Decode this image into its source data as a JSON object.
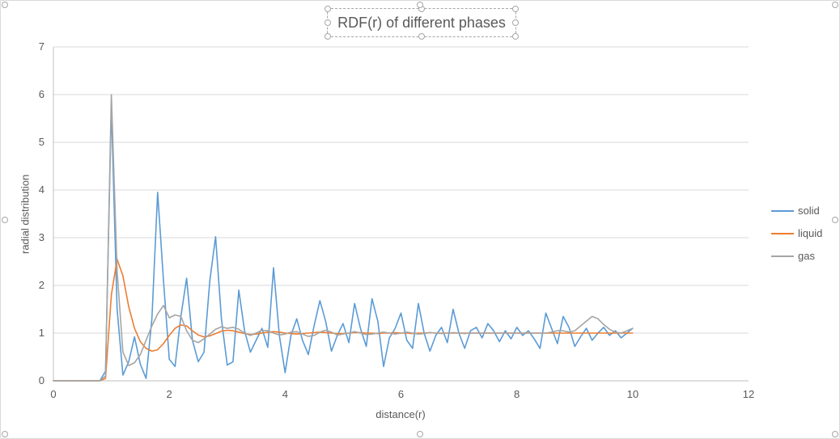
{
  "colors": {
    "series_solid": "#5B9BD5",
    "series_liquid": "#ED7D31",
    "series_gas": "#A5A5A5",
    "gridline": "#D9D9D9",
    "axis_line": "#BFBFBF",
    "text": "#595959",
    "selection_handle_border": "#A6A6A6"
  },
  "chart_data": {
    "type": "line",
    "title": "RDF(r) of different phases",
    "xlabel": "distance(r)",
    "ylabel": "radial distribution",
    "xlim": [
      0,
      12
    ],
    "ylim": [
      0,
      7
    ],
    "x_ticks": [
      0,
      2,
      4,
      6,
      8,
      10,
      12
    ],
    "y_ticks": [
      0,
      1,
      2,
      3,
      4,
      5,
      6,
      7
    ],
    "grid": "horizontal",
    "legend_position": "right",
    "x_start": 0.0,
    "x_step": 0.1,
    "series": [
      {
        "name": "solid",
        "color": "#5B9BD5",
        "values": [
          0,
          0,
          0,
          0,
          0,
          0,
          0,
          0,
          0,
          0.2,
          5.73,
          1.5,
          0.12,
          0.4,
          0.92,
          0.35,
          0.05,
          1.3,
          3.95,
          2.1,
          0.45,
          0.3,
          1.35,
          2.15,
          0.85,
          0.4,
          0.6,
          2.1,
          3.02,
          1.3,
          0.33,
          0.4,
          1.9,
          1.05,
          0.6,
          0.85,
          1.1,
          0.7,
          2.37,
          0.95,
          0.17,
          0.95,
          1.3,
          0.85,
          0.55,
          1.15,
          1.68,
          1.25,
          0.62,
          0.95,
          1.2,
          0.8,
          1.62,
          1.1,
          0.72,
          1.72,
          1.25,
          0.3,
          0.9,
          1.1,
          1.42,
          0.85,
          0.68,
          1.62,
          1.0,
          0.62,
          0.95,
          1.12,
          0.8,
          1.5,
          1.0,
          0.68,
          1.05,
          1.12,
          0.9,
          1.2,
          1.05,
          0.82,
          1.05,
          0.88,
          1.12,
          0.95,
          1.05,
          0.88,
          0.68,
          1.42,
          1.1,
          0.78,
          1.35,
          1.12,
          0.72,
          0.92,
          1.1,
          0.85,
          1.0,
          1.12,
          0.95,
          1.05,
          0.9,
          1.0,
          1.1
        ]
      },
      {
        "name": "liquid",
        "color": "#ED7D31",
        "values": [
          0,
          0,
          0,
          0,
          0,
          0,
          0,
          0,
          0,
          0.05,
          1.8,
          2.55,
          2.2,
          1.55,
          1.1,
          0.82,
          0.68,
          0.62,
          0.65,
          0.78,
          0.95,
          1.1,
          1.17,
          1.15,
          1.05,
          0.96,
          0.92,
          0.94,
          0.99,
          1.04,
          1.06,
          1.05,
          1.02,
          0.99,
          0.97,
          0.98,
          1.0,
          1.02,
          1.03,
          1.02,
          1.0,
          0.99,
          0.98,
          0.99,
          1.0,
          1.01,
          1.02,
          1.01,
          1.0,
          0.99,
          0.99,
          1.0,
          1.01,
          1.01,
          1.0,
          1.0,
          0.99,
          1.0,
          1.0,
          1.01,
          1.0,
          1.0,
          0.99,
          1.0,
          1.0,
          1.01,
          1.0,
          1.0,
          1.0,
          1.0,
          1.0,
          1.0,
          1.0,
          1.0,
          1.0,
          1.0,
          1.0,
          1.0,
          1.0,
          1.0,
          1.0,
          1.0,
          1.0,
          1.0,
          1.0,
          1.0,
          1.0,
          1.0,
          1.0,
          1.0,
          1.0,
          1.0,
          1.0,
          1.0,
          1.0,
          1.0,
          1.0,
          1.0,
          1.0,
          1.0,
          1.0
        ]
      },
      {
        "name": "gas",
        "color": "#A5A5A5",
        "values": [
          0,
          0,
          0,
          0,
          0,
          0,
          0,
          0,
          0,
          0.1,
          6.0,
          2.3,
          0.6,
          0.32,
          0.38,
          0.55,
          0.85,
          1.15,
          1.4,
          1.58,
          1.32,
          1.38,
          1.35,
          1.05,
          0.85,
          0.8,
          0.88,
          0.98,
          1.08,
          1.13,
          1.1,
          1.12,
          1.08,
          1.0,
          0.95,
          1.0,
          1.06,
          1.05,
          1.0,
          0.96,
          0.98,
          1.02,
          1.03,
          0.98,
          0.93,
          0.95,
          1.02,
          1.06,
          1.02,
          0.96,
          0.98,
          1.0,
          1.03,
          1.0,
          0.97,
          0.98,
          1.0,
          1.02,
          1.0,
          0.98,
          1.0,
          1.02,
          1.0,
          0.98,
          0.99,
          1.01,
          1.0,
          0.99,
          1.0,
          1.01,
          1.0,
          0.99,
          1.0,
          1.0,
          1.0,
          1.0,
          1.0,
          1.0,
          1.0,
          1.0,
          1.0,
          1.0,
          1.0,
          1.0,
          1.0,
          1.0,
          1.02,
          1.05,
          1.05,
          1.02,
          1.05,
          1.15,
          1.25,
          1.35,
          1.3,
          1.18,
          1.08,
          1.02,
          1.0,
          1.05,
          1.1
        ]
      }
    ]
  }
}
